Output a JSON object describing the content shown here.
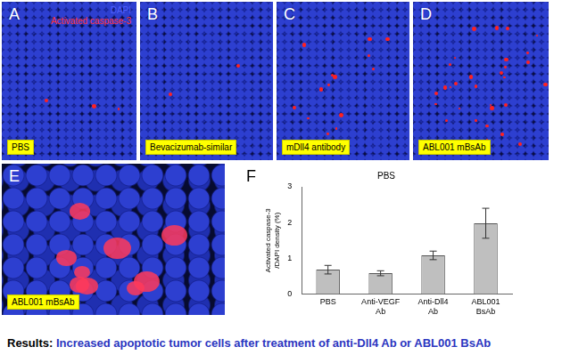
{
  "panels": [
    {
      "letter": "A",
      "label": "PBS",
      "key": [
        "DAPI",
        "Activated caspase-3"
      ]
    },
    {
      "letter": "B",
      "label": "Bevacizumab-similar"
    },
    {
      "letter": "C",
      "label": "mDll4 antibody"
    },
    {
      "letter": "D",
      "label": "ABL001 mBsAb"
    },
    {
      "letter": "E",
      "label": "ABL001 mBsAb"
    }
  ],
  "chart_panel": "F",
  "chart_data": {
    "type": "bar",
    "title": "PBS",
    "y_label": [
      "Activated caspase-3",
      "/DAPI density (%)"
    ],
    "categories": [
      [
        "PBS"
      ],
      [
        "Anti-VEGF",
        "Ab"
      ],
      [
        "Anti-Dll4",
        "Ab"
      ],
      [
        "ABL001",
        "BsAb"
      ]
    ],
    "values": [
      0.68,
      0.58,
      1.08,
      1.98
    ],
    "errors": [
      0.12,
      0.07,
      0.12,
      0.42
    ],
    "color": "#bfbfbf",
    "ylim": [
      0,
      3
    ],
    "yticks": [
      0,
      1,
      2,
      3
    ],
    "grid": false
  },
  "caption": {
    "lead": "Results:",
    "text": "Increased apoptotic tumor cells after treatment of anti-Dll4 Ab or ABL001 BsAb"
  }
}
